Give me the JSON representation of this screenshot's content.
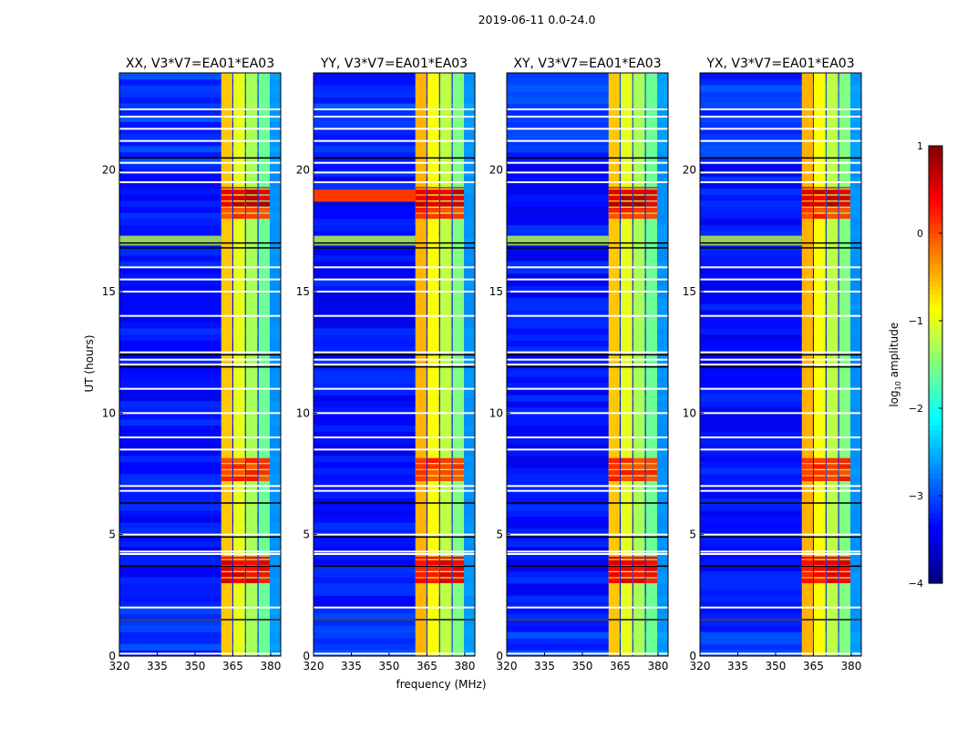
{
  "chart_data": {
    "type": "heatmap",
    "title": "2019-06-11 0.0-24.0",
    "xlabel": "frequency (MHz)",
    "ylabel": "UT (hours)",
    "xlim": [
      320,
      384
    ],
    "ylim": [
      0,
      24
    ],
    "xticks": [
      320,
      335,
      350,
      365,
      380
    ],
    "yticks": [
      0,
      5,
      10,
      15,
      20
    ],
    "panels": [
      {
        "title": "XX, V3*V7=EA01*EA03",
        "wide_stripe": false
      },
      {
        "title": "YY, V3*V7=EA01*EA03",
        "wide_stripe": true
      },
      {
        "title": "XY, V3*V7=EA01*EA03",
        "wide_stripe": false
      },
      {
        "title": "YX, V3*V7=EA01*EA03",
        "wide_stripe": false
      }
    ],
    "background_log10_amplitude": -3.3,
    "subbands_mhz": [
      [
        360.4,
        364.8,
        -0.5
      ],
      [
        365.2,
        369.8,
        -0.9
      ],
      [
        370.2,
        374.8,
        -1.2
      ],
      [
        375.2,
        379.7,
        -1.5
      ]
    ],
    "bright_intervals_hours": [
      [
        18.0,
        18.5,
        0.3
      ],
      [
        18.5,
        19.3,
        0.8
      ],
      [
        3.0,
        4.1,
        0.6
      ],
      [
        7.2,
        8.2,
        0.3
      ]
    ],
    "flagged_white_hours": [
      22.5,
      22.2,
      21.7,
      21.2,
      20.3,
      19.9,
      19.5,
      16.0,
      15.5,
      15.0,
      14.0,
      12.0,
      12.2,
      12.5,
      11.0,
      10.0,
      9.0,
      8.5,
      7.0,
      6.8,
      5.0,
      4.2,
      4.3,
      2.0,
      1.5,
      0.1
    ],
    "flagged_black_hours": [
      20.5,
      17.0,
      16.8,
      12.4,
      11.9,
      6.3,
      4.9,
      3.7,
      1.5
    ],
    "colorbar": {
      "label": "log10 amplitude",
      "label_main": "log",
      "label_sub": "10",
      "label_rest": " amplitude",
      "range": [
        -4,
        1
      ],
      "ticks": [
        1,
        0,
        -1,
        -2,
        -3,
        -4
      ],
      "tick_labels": [
        "1",
        "0",
        "−1",
        "−2",
        "−3",
        "−4"
      ],
      "colormap": "jet"
    }
  }
}
